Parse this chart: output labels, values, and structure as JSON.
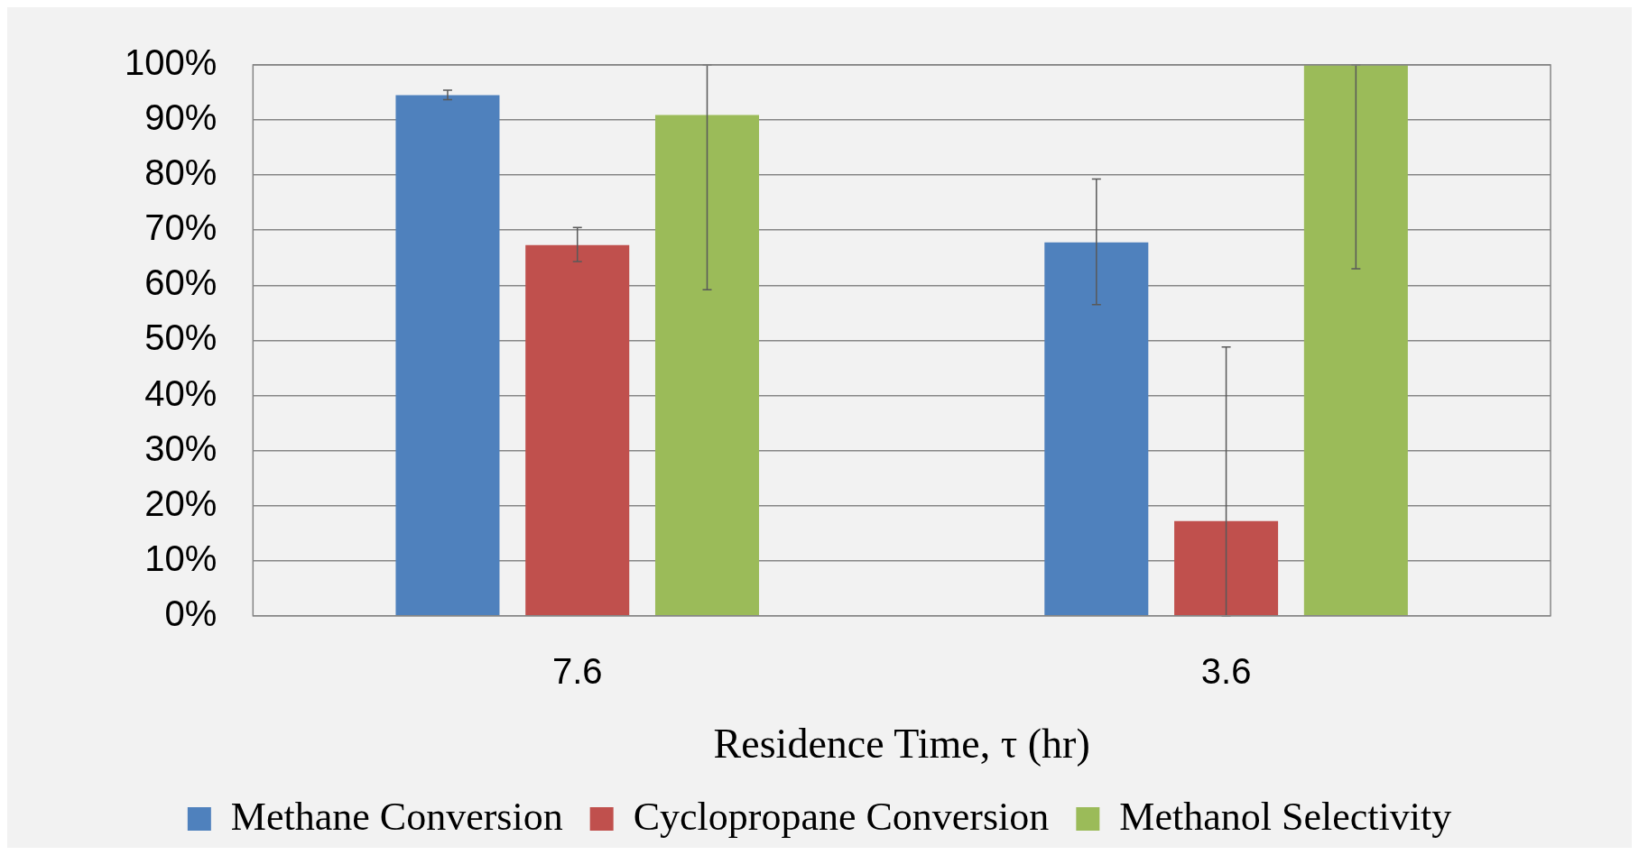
{
  "chart_data": {
    "type": "bar",
    "xlabel": "Residence Time, τ (hr)",
    "categories": [
      "7.6",
      "3.6"
    ],
    "series": [
      {
        "name": "Methane Conversion",
        "color": "#4f81bd",
        "values": [
          94.5,
          67.8
        ],
        "errors": [
          [
            93.7,
            95.4
          ],
          [
            56.5,
            79.3
          ]
        ]
      },
      {
        "name": "Cyclopropane Conversion",
        "color": "#c0504d",
        "values": [
          67.3,
          17.2
        ],
        "errors": [
          [
            64.3,
            70.5
          ],
          [
            0,
            48.8
          ]
        ]
      },
      {
        "name": "Methanol Selectivity",
        "color": "#9bbb59",
        "values": [
          90.9,
          100
        ],
        "errors": [
          [
            59.2,
            100
          ],
          [
            63.0,
            100
          ]
        ]
      }
    ],
    "ylim": [
      0,
      100
    ],
    "yticks": [
      {
        "value": 0,
        "label": "0%"
      },
      {
        "value": 10,
        "label": "10%"
      },
      {
        "value": 20,
        "label": "20%"
      },
      {
        "value": 30,
        "label": "30%"
      },
      {
        "value": 40,
        "label": "40%"
      },
      {
        "value": 50,
        "label": "50%"
      },
      {
        "value": 60,
        "label": "60%"
      },
      {
        "value": 70,
        "label": "70%"
      },
      {
        "value": 80,
        "label": "80%"
      },
      {
        "value": 90,
        "label": "90%"
      },
      {
        "value": 100,
        "label": "100%"
      }
    ],
    "grid": "y",
    "legend": "bottom"
  }
}
